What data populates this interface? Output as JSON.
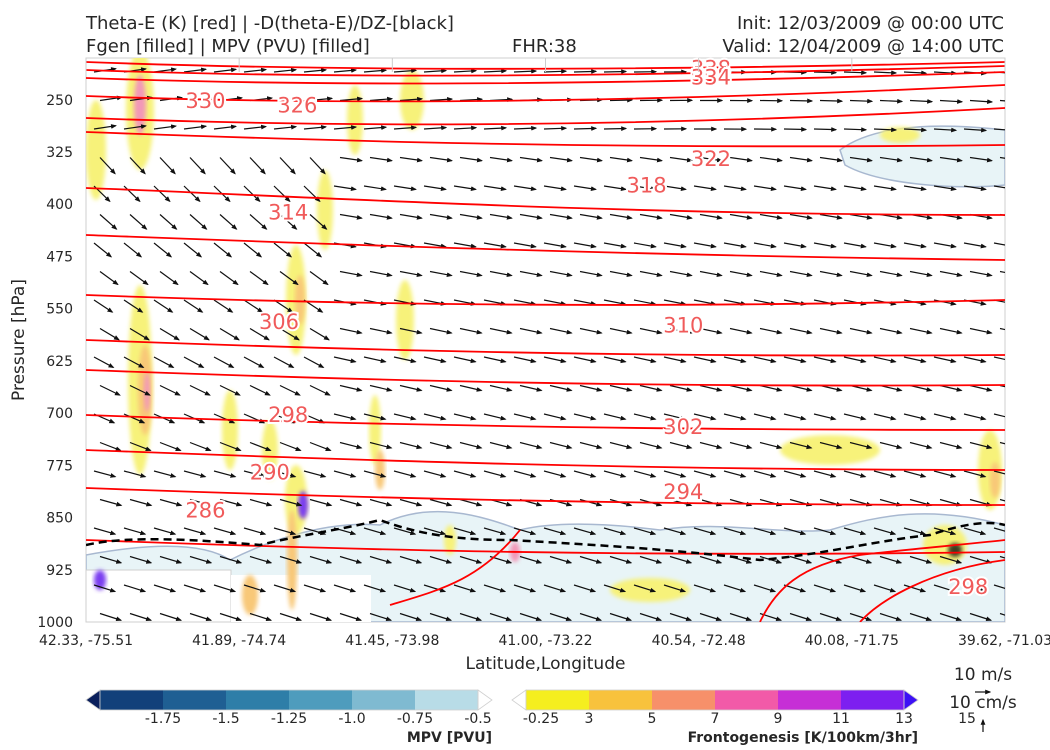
{
  "header": {
    "title_line1": "Theta-E (K) [red] | -D(theta-E)/DZ-[black]",
    "title_line2": "Fgen [filled] | MPV (PVU) [filled]",
    "fhr": "FHR:38",
    "init": "Init: 12/03/2009 @ 00:00 UTC",
    "valid": "Valid: 12/04/2009 @ 14:00 UTC"
  },
  "chart_data": {
    "type": "cross-section",
    "xlabel": "Latitude,Longitude",
    "ylabel": "Pressure [hPa]",
    "x_ticks": [
      "42.33, -75.51",
      "41.89, -74.74",
      "41.45, -73.98",
      "41.00, -73.22",
      "40.54, -72.48",
      "40.08, -71.75",
      "39.62, -71.03"
    ],
    "y_ticks": [
      250,
      325,
      400,
      475,
      550,
      625,
      700,
      775,
      850,
      925,
      1000
    ],
    "ylim": [
      1000,
      190
    ],
    "theta_e_labels": [
      {
        "value": "330",
        "x": 0.13,
        "p": 252
      },
      {
        "value": "326",
        "x": 0.23,
        "p": 258
      },
      {
        "value": "338",
        "x": 0.68,
        "p": 205
      },
      {
        "value": "334",
        "x": 0.68,
        "p": 218
      },
      {
        "value": "322",
        "x": 0.68,
        "p": 335
      },
      {
        "value": "318",
        "x": 0.61,
        "p": 373
      },
      {
        "value": "314",
        "x": 0.22,
        "p": 412
      },
      {
        "value": "310",
        "x": 0.65,
        "p": 574
      },
      {
        "value": "306",
        "x": 0.21,
        "p": 569
      },
      {
        "value": "302",
        "x": 0.65,
        "p": 720
      },
      {
        "value": "298",
        "x": 0.22,
        "p": 703
      },
      {
        "value": "294",
        "x": 0.65,
        "p": 813
      },
      {
        "value": "290",
        "x": 0.2,
        "p": 785
      },
      {
        "value": "286",
        "x": 0.13,
        "p": 840
      },
      {
        "value": "298",
        "x": 0.96,
        "p": 950
      }
    ],
    "reference_vectors": [
      "10 m/s",
      "10 cm/s"
    ],
    "colorbars": [
      {
        "label": "MPV [PVU]",
        "ticks": [
          "-1.75",
          "-1.5",
          "-1.25",
          "-1.0",
          "-0.75",
          "-0.5",
          "-0.25"
        ],
        "colors": [
          "#0a1f5c",
          "#12407a",
          "#1f5f93",
          "#2e7ea8",
          "#4e9cbd",
          "#7fbad1",
          "#b8dce7",
          "#ffffff"
        ]
      },
      {
        "label": "Frontogenesis [K/100km/3hr]",
        "ticks": [
          "3",
          "5",
          "7",
          "9",
          "11",
          "13",
          "15"
        ],
        "colors": [
          "#ffffff",
          "#f5ee1f",
          "#f8c23c",
          "#f7906a",
          "#f25aa8",
          "#c62fd6",
          "#7d1ff0",
          "#3d10f5"
        ]
      }
    ],
    "series_colors": {
      "theta_e": "#ff0000",
      "dthetae_dz": "#000000",
      "arrows": "#111111",
      "mpv_outline": "#a8b8d0"
    }
  }
}
